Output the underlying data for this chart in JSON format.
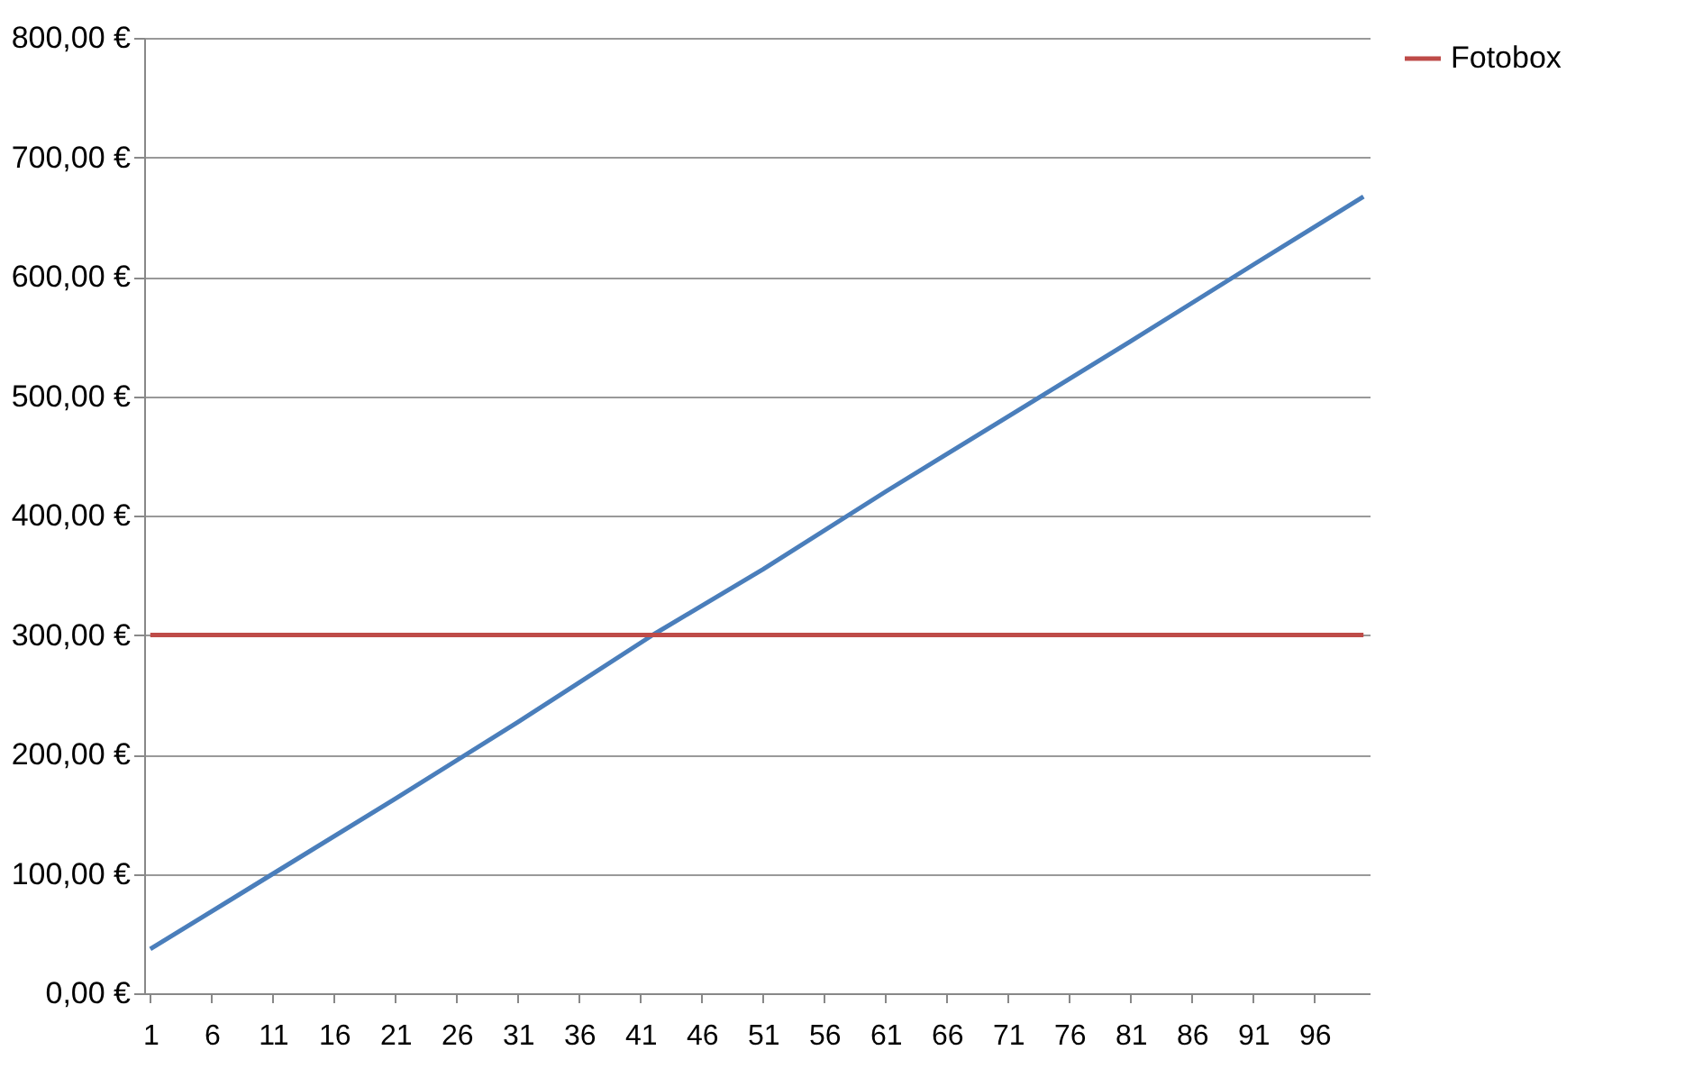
{
  "chart_data": {
    "type": "line",
    "xlim": [
      0.5,
      100.5
    ],
    "xticks": [
      1,
      6,
      11,
      16,
      21,
      26,
      31,
      36,
      41,
      46,
      51,
      56,
      61,
      66,
      71,
      76,
      81,
      86,
      91,
      96
    ],
    "ylim": [
      0,
      800
    ],
    "yticks": [
      {
        "value": 0,
        "label": "0,00 €"
      },
      {
        "value": 100,
        "label": "100,00 €"
      },
      {
        "value": 200,
        "label": "200,00 €"
      },
      {
        "value": 300,
        "label": "300,00 €"
      },
      {
        "value": 400,
        "label": "400,00 €"
      },
      {
        "value": 500,
        "label": "500,00 €"
      },
      {
        "value": 600,
        "label": "600,00 €"
      },
      {
        "value": 700,
        "label": "700,00 €"
      },
      {
        "value": 800,
        "label": "800,00 €"
      }
    ],
    "grid": "y",
    "legend": "right",
    "marker": "none",
    "series": [
      {
        "color": "#4a7ebb",
        "x": [
          1,
          11,
          21,
          31,
          42,
          51,
          61,
          71,
          81,
          91,
          100
        ],
        "values": [
          37,
          100,
          163,
          227,
          300,
          355,
          420,
          483,
          546,
          610,
          667
        ]
      },
      {
        "name": "Fotobox",
        "color": "#be4b48",
        "x": [
          1,
          100
        ],
        "values": [
          300,
          300
        ]
      }
    ]
  }
}
